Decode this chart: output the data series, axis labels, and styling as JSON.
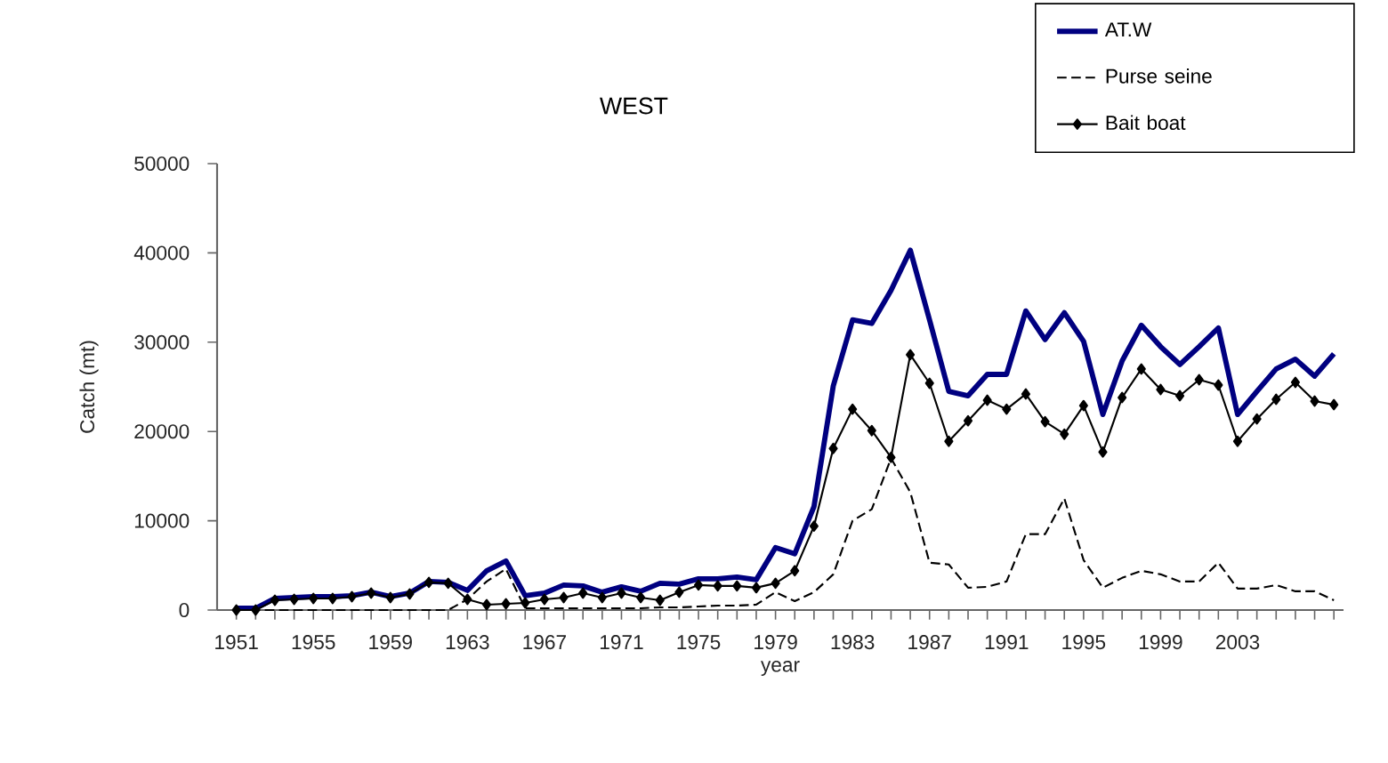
{
  "chart_data": {
    "type": "line",
    "title": "WEST",
    "xlabel": "year",
    "ylabel": "Catch (mt)",
    "x": [
      1951,
      1952,
      1953,
      1954,
      1955,
      1956,
      1957,
      1958,
      1959,
      1960,
      1961,
      1962,
      1963,
      1964,
      1965,
      1966,
      1967,
      1968,
      1969,
      1970,
      1971,
      1972,
      1973,
      1974,
      1975,
      1976,
      1977,
      1978,
      1979,
      1980,
      1981,
      1982,
      1983,
      1984,
      1985,
      1986,
      1987,
      1988,
      1989,
      1990,
      1991,
      1992,
      1993,
      1994,
      1995,
      1996,
      1997,
      1998,
      1999,
      2000,
      2001,
      2002,
      2003,
      2004,
      2005,
      2006,
      2007,
      2008
    ],
    "series": [
      {
        "name": "AT.W",
        "color": "#000080",
        "line_style": "solid",
        "marker": "none",
        "values": [
          200,
          200,
          1300,
          1400,
          1500,
          1500,
          1600,
          2000,
          1500,
          1900,
          3200,
          3100,
          2200,
          4400,
          5500,
          1600,
          1900,
          2800,
          2700,
          2000,
          2600,
          2100,
          3000,
          2900,
          3500,
          3500,
          3700,
          3400,
          7000,
          6300,
          11600,
          25100,
          32500,
          32100,
          35800,
          40300,
          32500,
          24500,
          24000,
          26400,
          26400,
          33500,
          30300,
          33300,
          30100,
          21900,
          27900,
          31900,
          29500,
          27500,
          29500,
          31600,
          21900,
          24500,
          27000,
          28100,
          26200,
          28700
        ]
      },
      {
        "name": "Purse seine",
        "color": "#000000",
        "line_style": "dashed",
        "marker": "none",
        "values": [
          0,
          0,
          0,
          0,
          0,
          0,
          0,
          0,
          0,
          0,
          0,
          0,
          1200,
          3200,
          4600,
          200,
          200,
          200,
          200,
          200,
          200,
          200,
          300,
          300,
          400,
          500,
          500,
          600,
          2000,
          1000,
          2000,
          4000,
          10000,
          11300,
          17000,
          13200,
          5300,
          5100,
          2500,
          2600,
          3200,
          8500,
          8500,
          12500,
          5600,
          2500,
          3600,
          4400,
          4000,
          3200,
          3200,
          5300,
          2400,
          2400,
          2800,
          2100,
          2100,
          1100
        ]
      },
      {
        "name": "Bait boat",
        "color": "#000000",
        "line_style": "solid",
        "marker": "diamond",
        "values": [
          0,
          0,
          1100,
          1200,
          1300,
          1300,
          1500,
          1900,
          1400,
          1800,
          3100,
          3000,
          1200,
          600,
          700,
          800,
          1200,
          1400,
          1900,
          1400,
          1900,
          1400,
          1100,
          2000,
          2800,
          2700,
          2700,
          2500,
          3000,
          4400,
          9400,
          18100,
          22500,
          20100,
          17100,
          28600,
          25400,
          18900,
          21200,
          23500,
          22500,
          24200,
          21100,
          19700,
          22900,
          17700,
          23800,
          27000,
          24700,
          24000,
          25800,
          25200,
          18900,
          21400,
          23600,
          25500,
          23400,
          23000
        ]
      }
    ],
    "xlim": [
      1950,
      2008.5
    ],
    "ylim": [
      0,
      50000
    ],
    "xticks": [
      1951,
      {
        "value": 1952,
        "label": null
      },
      {
        "value": 1953,
        "label": null
      },
      {
        "value": 1954,
        "label": null
      },
      1955,
      {
        "value": 1956,
        "label": null
      },
      {
        "value": 1957,
        "label": null
      },
      {
        "value": 1958,
        "label": null
      },
      1959,
      {
        "value": 1960,
        "label": null
      },
      {
        "value": 1961,
        "label": null
      },
      {
        "value": 1962,
        "label": null
      },
      1963,
      {
        "value": 1964,
        "label": null
      },
      {
        "value": 1965,
        "label": null
      },
      {
        "value": 1966,
        "label": null
      },
      1967,
      {
        "value": 1968,
        "label": null
      },
      {
        "value": 1969,
        "label": null
      },
      {
        "value": 1970,
        "label": null
      },
      1971,
      {
        "value": 1972,
        "label": null
      },
      {
        "value": 1973,
        "label": null
      },
      {
        "value": 1974,
        "label": null
      },
      1975,
      {
        "value": 1976,
        "label": null
      },
      {
        "value": 1977,
        "label": null
      },
      {
        "value": 1978,
        "label": null
      },
      1979,
      {
        "value": 1980,
        "label": null
      },
      {
        "value": 1981,
        "label": null
      },
      {
        "value": 1982,
        "label": null
      },
      1983,
      {
        "value": 1984,
        "label": null
      },
      {
        "value": 1985,
        "label": null
      },
      {
        "value": 1986,
        "label": null
      },
      1987,
      {
        "value": 1988,
        "label": null
      },
      {
        "value": 1989,
        "label": null
      },
      {
        "value": 1990,
        "label": null
      },
      1991,
      {
        "value": 1992,
        "label": null
      },
      {
        "value": 1993,
        "label": null
      },
      {
        "value": 1994,
        "label": null
      },
      1995,
      {
        "value": 1996,
        "label": null
      },
      {
        "value": 1997,
        "label": null
      },
      {
        "value": 1998,
        "label": null
      },
      1999,
      {
        "value": 2000,
        "label": null
      },
      {
        "value": 2001,
        "label": null
      },
      {
        "value": 2002,
        "label": null
      },
      2003,
      {
        "value": 2004,
        "label": null
      },
      {
        "value": 2005,
        "label": null
      },
      {
        "value": 2006,
        "label": null
      },
      {
        "value": 2007,
        "label": null
      },
      {
        "value": 2008,
        "label": null
      }
    ],
    "yticks": [
      0,
      10000,
      20000,
      30000,
      40000,
      50000
    ],
    "grid": false,
    "legend": "top right"
  }
}
